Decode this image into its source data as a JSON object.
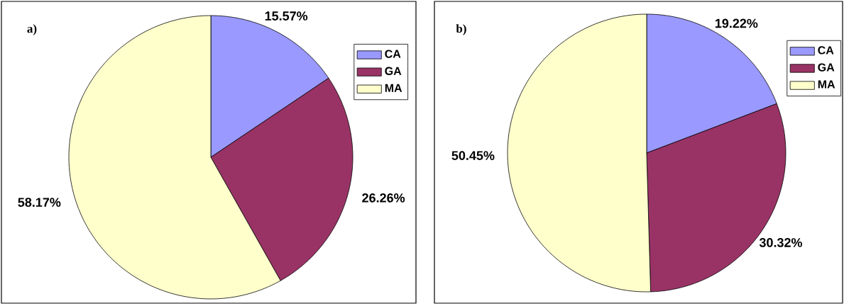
{
  "chart_data": [
    {
      "type": "pie",
      "title": "a)",
      "categories": [
        "CA",
        "GA",
        "MA"
      ],
      "values": [
        15.57,
        26.26,
        58.17
      ],
      "colors": [
        "#9999ff",
        "#993366",
        "#ffffcc"
      ],
      "value_labels": [
        "15.57%",
        "26.26%",
        "58.17%"
      ],
      "legend": "right"
    },
    {
      "type": "pie",
      "title": "b)",
      "categories": [
        "CA",
        "GA",
        "MA"
      ],
      "values": [
        19.22,
        30.32,
        50.45
      ],
      "colors": [
        "#9999ff",
        "#993366",
        "#ffffcc"
      ],
      "value_labels": [
        "19.22%",
        "30.32%",
        "50.45%"
      ],
      "legend": "right"
    }
  ]
}
